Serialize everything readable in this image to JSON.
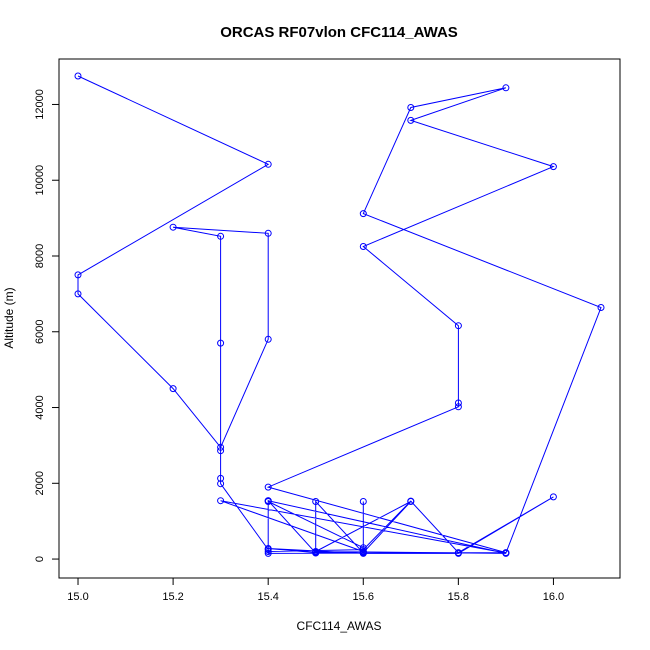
{
  "chart_data": {
    "type": "line",
    "title": "ORCAS RF07vlon CFC114_AWAS",
    "xlabel": "CFC114_AWAS",
    "ylabel": "Altitude (m)",
    "xlim": [
      14.96,
      16.14
    ],
    "ylim": [
      -500,
      13200
    ],
    "xticks": [
      "15.0",
      "15.2",
      "15.4",
      "15.6",
      "15.8",
      "16.0"
    ],
    "xtick_values": [
      15.0,
      15.2,
      15.4,
      15.6,
      15.8,
      16.0
    ],
    "yticks": [
      "0",
      "2000",
      "4000",
      "6000",
      "8000",
      "10000",
      "12000"
    ],
    "ytick_values": [
      0,
      2000,
      4000,
      6000,
      8000,
      10000,
      12000
    ],
    "grid": false,
    "series": [
      {
        "color": "#0000ff",
        "marker": "open-circle",
        "points": [
          [
            15.0,
            12750
          ],
          [
            15.4,
            10420
          ],
          [
            15.0,
            7500
          ],
          [
            15.0,
            7000
          ],
          [
            15.2,
            4500
          ],
          [
            15.3,
            2950
          ],
          [
            15.4,
            5800
          ],
          [
            15.4,
            8600
          ],
          [
            15.2,
            8760
          ],
          [
            15.3,
            8520
          ],
          [
            15.3,
            5700
          ],
          [
            15.3,
            2860
          ],
          [
            15.3,
            2130
          ],
          [
            15.3,
            1990
          ],
          [
            15.4,
            250
          ],
          [
            15.4,
            150
          ],
          [
            15.9,
            170
          ],
          [
            15.4,
            1900
          ],
          [
            15.8,
            4020
          ],
          [
            15.8,
            4120
          ],
          [
            15.8,
            6160
          ],
          [
            15.6,
            8250
          ],
          [
            16.0,
            10360
          ],
          [
            15.7,
            11580
          ],
          [
            15.9,
            12440
          ],
          [
            15.7,
            11920
          ],
          [
            15.6,
            9120
          ],
          [
            16.1,
            6640
          ],
          [
            15.9,
            160
          ],
          [
            15.3,
            1540
          ],
          [
            15.6,
            200
          ],
          [
            15.6,
            300
          ],
          [
            15.4,
            1520
          ],
          [
            15.4,
            1540
          ],
          [
            15.5,
            160
          ],
          [
            15.5,
            180
          ],
          [
            15.5,
            1520
          ],
          [
            15.6,
            160
          ],
          [
            15.6,
            180
          ],
          [
            15.6,
            1520
          ],
          [
            15.6,
            170
          ],
          [
            15.7,
            1520
          ],
          [
            15.5,
            200
          ],
          [
            15.9,
            150
          ],
          [
            15.4,
            1540
          ],
          [
            15.4,
            200
          ],
          [
            15.6,
            250
          ],
          [
            15.7,
            1530
          ],
          [
            15.8,
            170
          ],
          [
            16.0,
            1640
          ],
          [
            15.8,
            150
          ],
          [
            15.6,
            150
          ],
          [
            15.4,
            280
          ],
          [
            15.5,
            170
          ],
          [
            15.6,
            190
          ]
        ]
      }
    ]
  }
}
